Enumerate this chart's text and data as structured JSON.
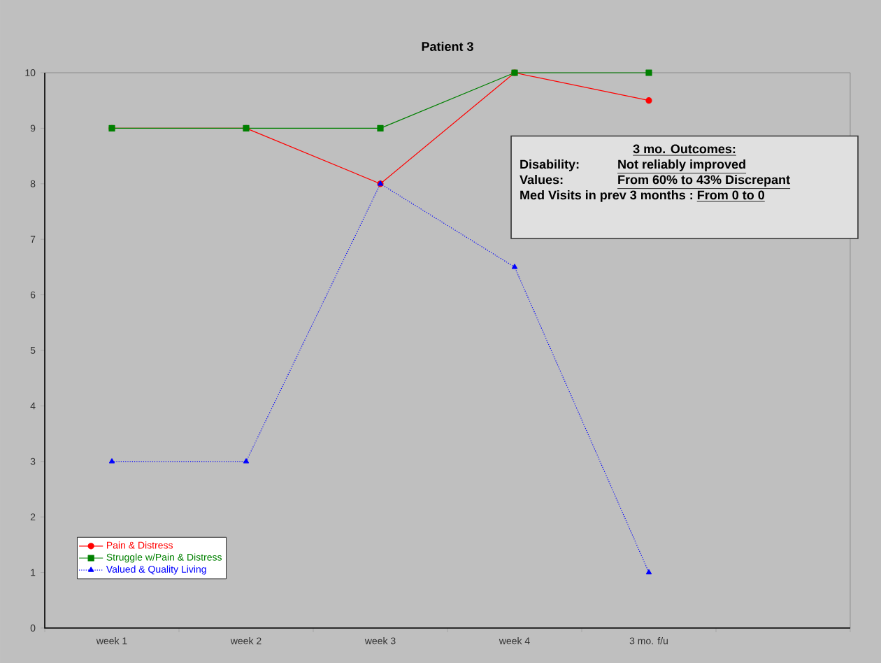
{
  "chart_data": {
    "type": "line",
    "title": "Patient 3",
    "categories": [
      "week 1",
      "week 2",
      "week 3",
      "week 4",
      "3 mo. f/u",
      null
    ],
    "ylim": [
      0,
      10
    ],
    "yticks": [
      0,
      1,
      2,
      3,
      4,
      5,
      6,
      7,
      8,
      9,
      10
    ],
    "legend": "bottom left",
    "series": [
      {
        "name": "Pain & Distress",
        "color": "#ff0000",
        "marker": "circle",
        "line_style": "solid",
        "values": [
          9,
          9,
          8,
          10,
          9.5,
          null
        ]
      },
      {
        "name": "Struggle w/Pain & Distress",
        "color": "#008000",
        "marker": "square",
        "line_style": "solid",
        "values": [
          9,
          9,
          9,
          10,
          10,
          null
        ]
      },
      {
        "name": "Valued & Quality Living",
        "color": "#0000ff",
        "marker": "triangle",
        "line_style": "dotted",
        "values": [
          3,
          3,
          8,
          6.5,
          1,
          null
        ]
      }
    ],
    "annotations": [
      "3 mo. Outcomes:",
      "Disability:",
      "Not reliably improved",
      "Values:",
      "From 60% to 43% Discrepant",
      "Med Visits in prev 3 months :",
      "From 0 to 0"
    ]
  }
}
